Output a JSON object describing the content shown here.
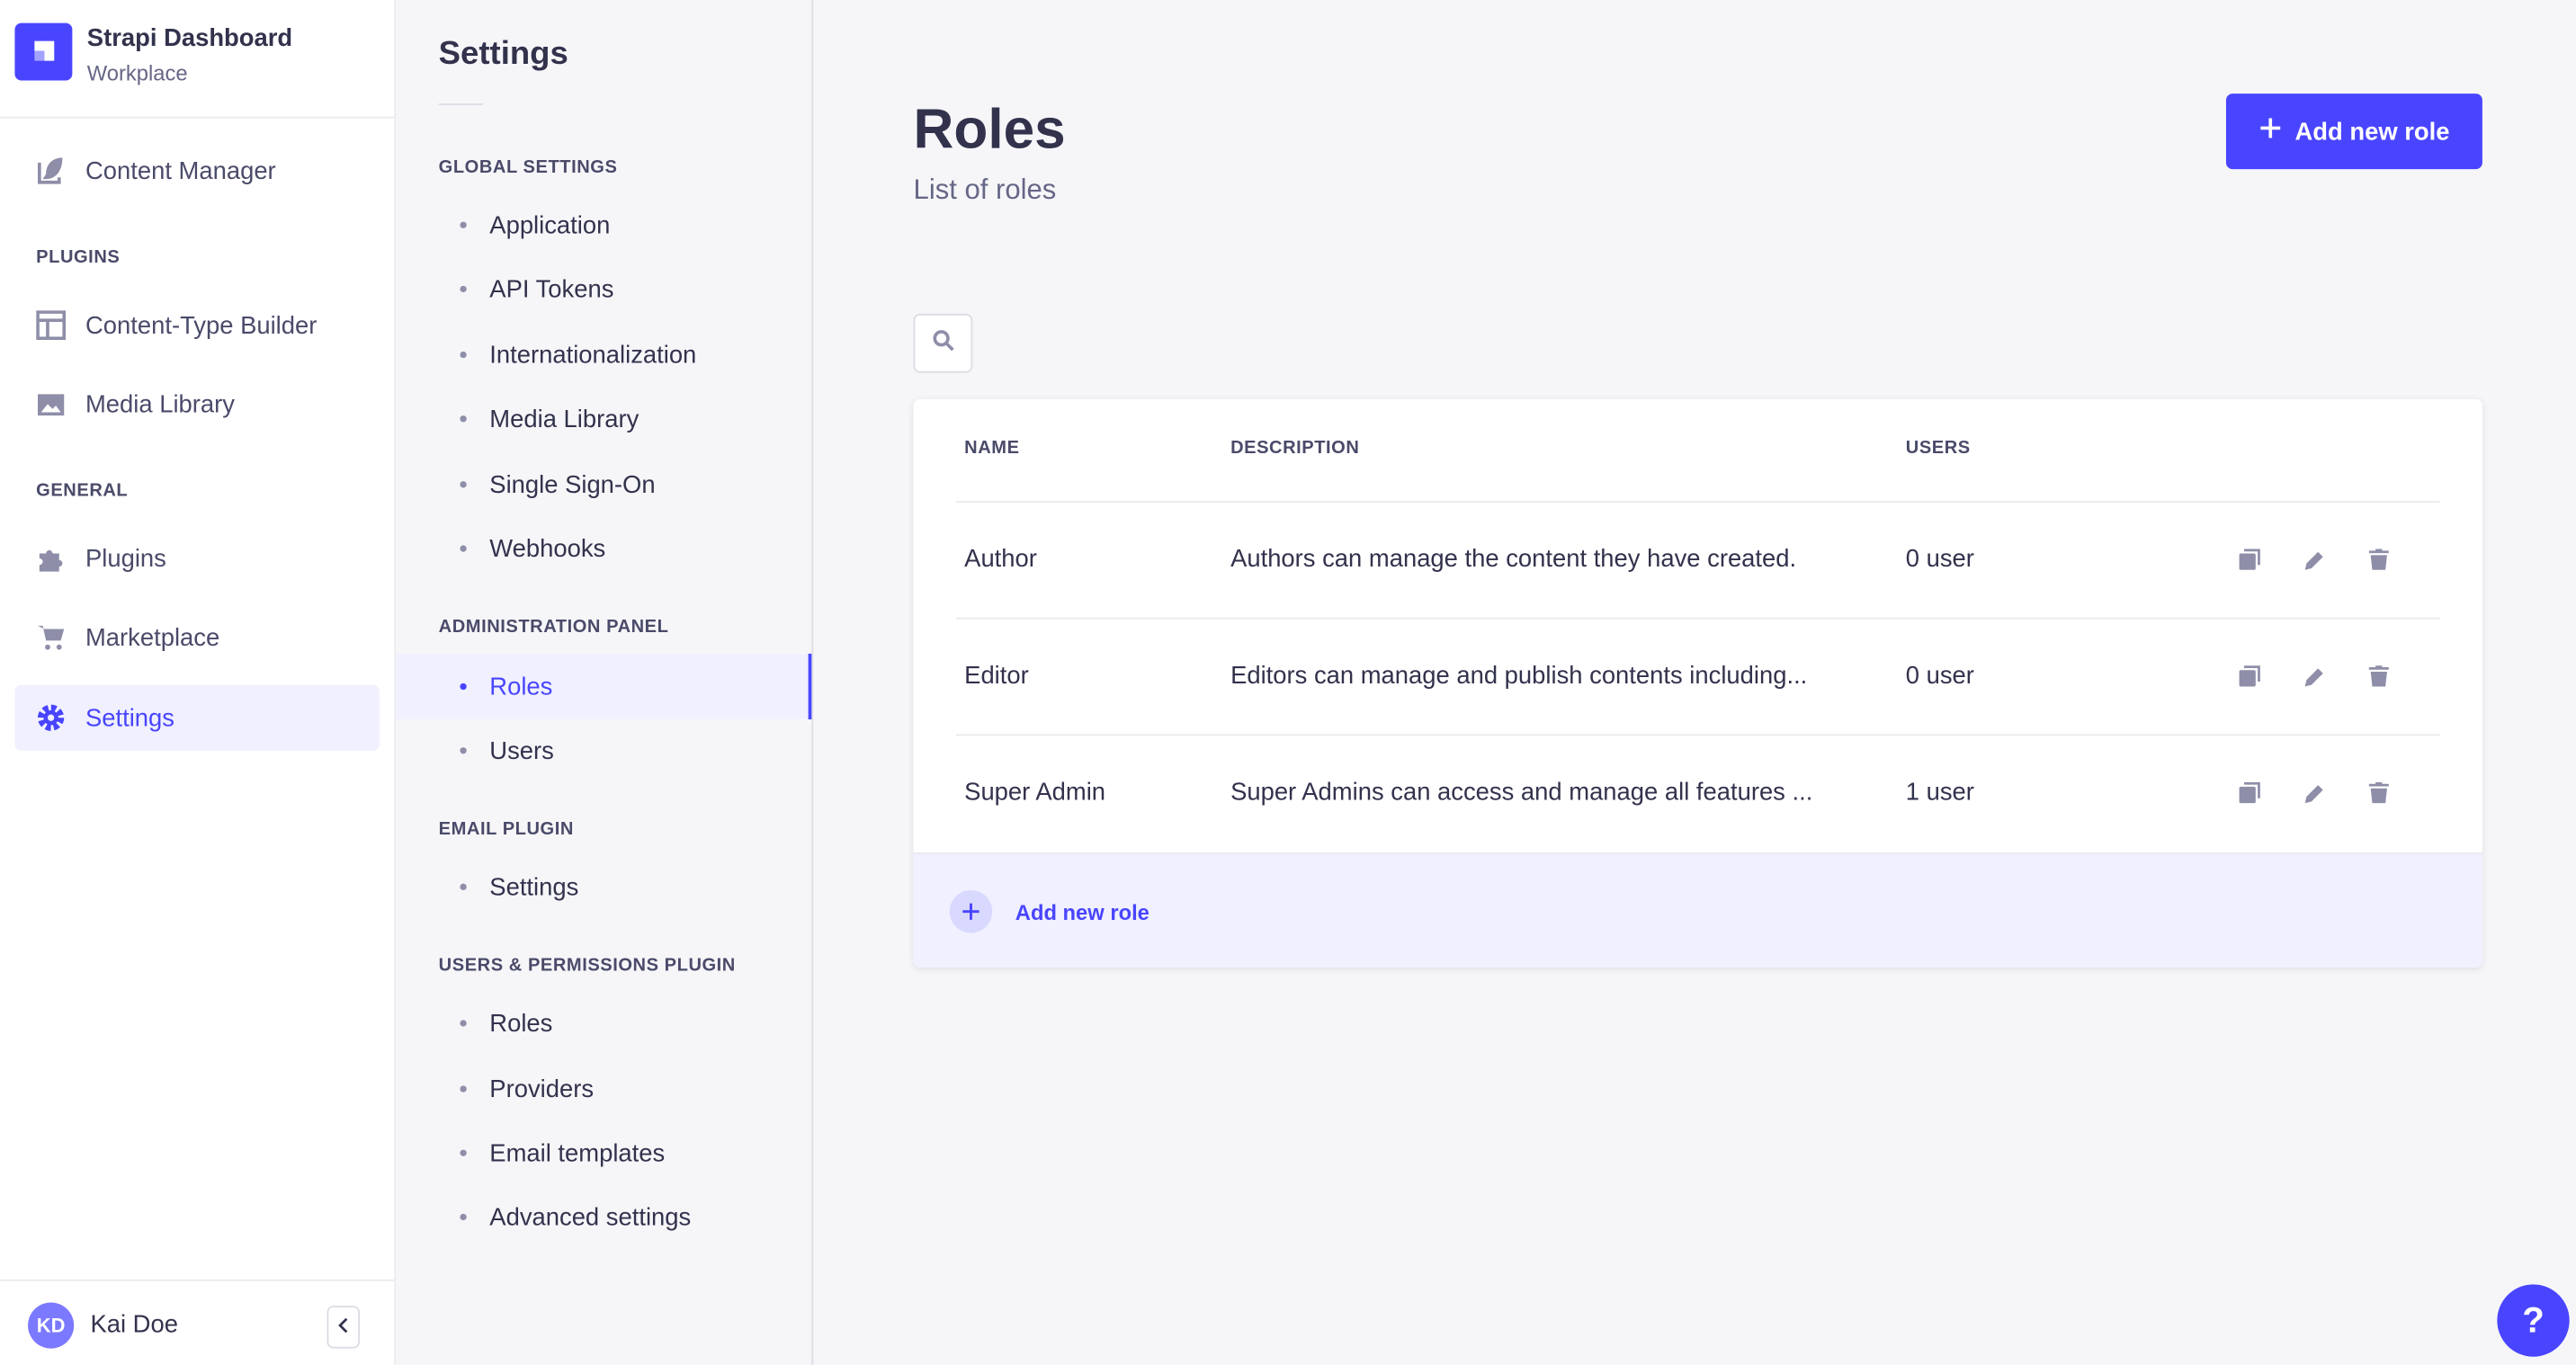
{
  "brand": {
    "title": "Strapi Dashboard",
    "subtitle": "Workplace"
  },
  "nav": {
    "content_manager": "Content Manager",
    "plugins_section": "PLUGINS",
    "content_type_builder": "Content-Type Builder",
    "media_library": "Media Library",
    "general_section": "GENERAL",
    "plugins": "Plugins",
    "marketplace": "Marketplace",
    "settings": "Settings"
  },
  "user": {
    "initials": "KD",
    "name": "Kai Doe"
  },
  "settings_nav": {
    "title": "Settings",
    "sections": [
      {
        "label": "GLOBAL SETTINGS",
        "items": [
          "Application",
          "API Tokens",
          "Internationalization",
          "Media Library",
          "Single Sign-On",
          "Webhooks"
        ]
      },
      {
        "label": "ADMINISTRATION PANEL",
        "items": [
          "Roles",
          "Users"
        ]
      },
      {
        "label": "EMAIL PLUGIN",
        "items": [
          "Settings"
        ]
      },
      {
        "label": "USERS & PERMISSIONS PLUGIN",
        "items": [
          "Roles",
          "Providers",
          "Email templates",
          "Advanced settings"
        ]
      }
    ],
    "active": "Roles"
  },
  "page": {
    "title": "Roles",
    "subtitle": "List of roles",
    "add_button": "Add new role"
  },
  "table": {
    "headers": [
      "NAME",
      "DESCRIPTION",
      "USERS"
    ],
    "rows": [
      {
        "name": "Author",
        "description": "Authors can manage the content they have created.",
        "users": "0 user"
      },
      {
        "name": "Editor",
        "description": "Editors can manage and publish contents including...",
        "users": "0 user"
      },
      {
        "name": "Super Admin",
        "description": "Super Admins can access and manage all features ...",
        "users": "1 user"
      }
    ],
    "footer_add": "Add new role"
  },
  "help": "?",
  "colors": {
    "accent": "#4945ff",
    "icon": "#8e8ea9",
    "text": "#32324d"
  }
}
